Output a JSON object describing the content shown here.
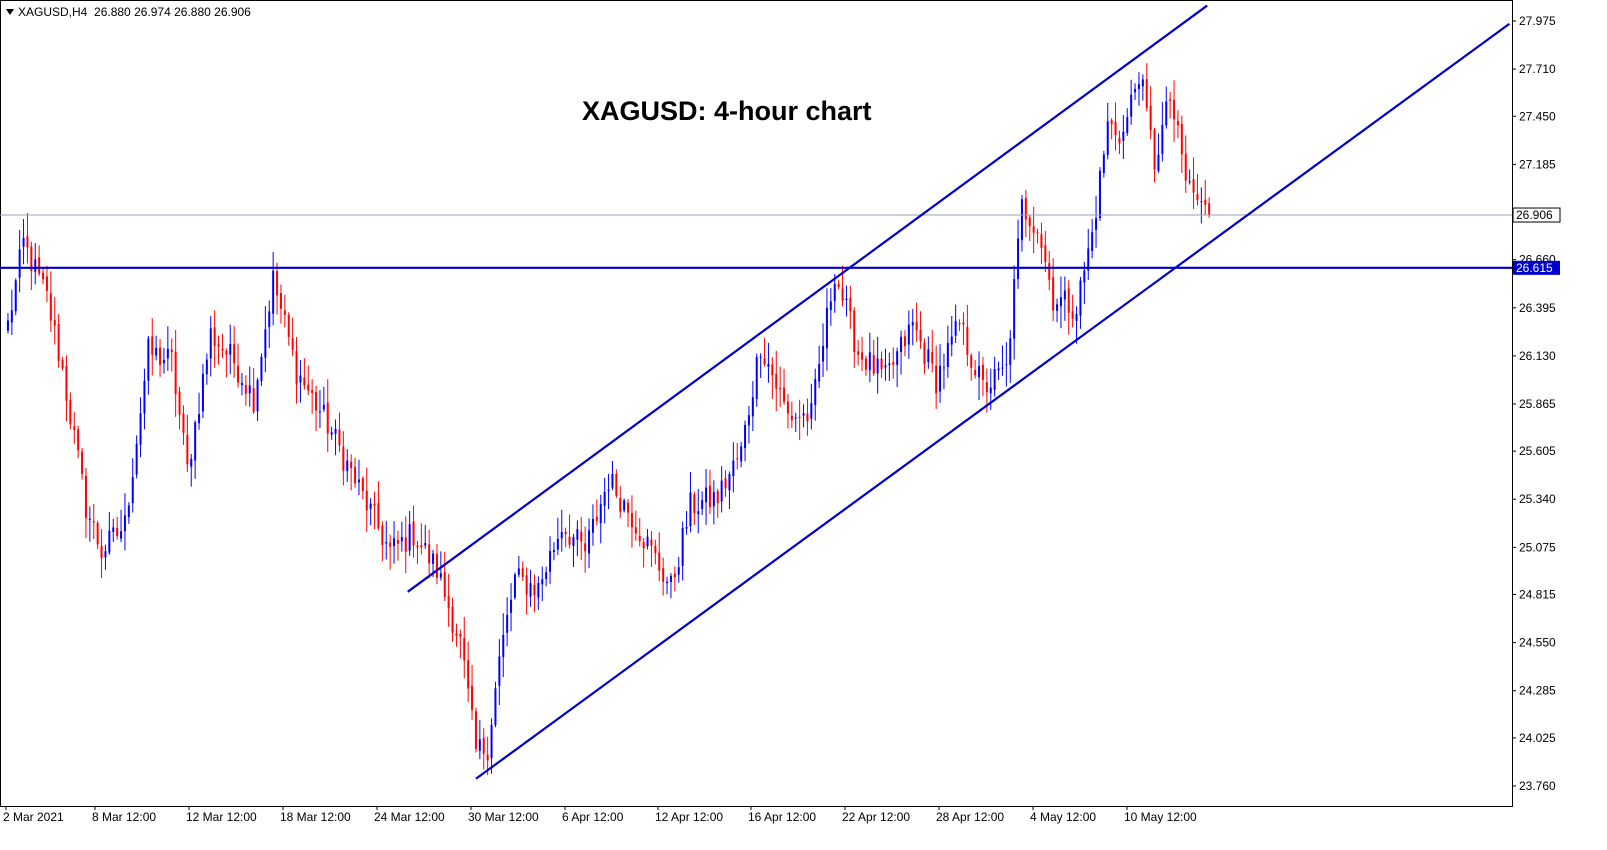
{
  "header": {
    "symbol": "XAGUSD,H4",
    "ohlc": "26.880 26.974 26.880 26.906"
  },
  "title": "XAGUSD: 4-hour chart",
  "chart_data": {
    "type": "candlestick",
    "symbol": "XAGUSD",
    "timeframe": "H4",
    "title": "XAGUSD: 4-hour chart",
    "ylim": [
      23.7,
      28.05
    ],
    "y_ticks": [
      "27.975",
      "27.710",
      "27.450",
      "27.185",
      "26.920",
      "26.660",
      "26.395",
      "26.130",
      "25.865",
      "25.605",
      "25.340",
      "25.075",
      "24.815",
      "24.550",
      "24.285",
      "24.025",
      "23.760"
    ],
    "x_ticks": [
      "2 Mar 2021",
      "8 Mar 12:00",
      "12 Mar 12:00",
      "18 Mar 12:00",
      "24 Mar 12:00",
      "30 Mar 12:00",
      "6 Apr 12:00",
      "12 Apr 12:00",
      "16 Apr 12:00",
      "22 Apr 12:00",
      "28 Apr 12:00",
      "4 May 12:00",
      "10 May 12:00"
    ],
    "current_price": 26.906,
    "current_price_label": "26.906",
    "support_level": 26.615,
    "support_label": "26.615",
    "colors": {
      "bull": "#0000ff",
      "bear": "#ff0000",
      "trendline": "#0000cc",
      "price_line": "#9aa3b0"
    },
    "anchors": [
      {
        "bar": 0,
        "price": 26.3
      },
      {
        "bar": 4,
        "price": 26.75
      },
      {
        "bar": 10,
        "price": 26.45
      },
      {
        "bar": 14,
        "price": 26.05
      },
      {
        "bar": 20,
        "price": 25.3
      },
      {
        "bar": 24,
        "price": 25.05
      },
      {
        "bar": 30,
        "price": 25.2
      },
      {
        "bar": 36,
        "price": 26.15
      },
      {
        "bar": 42,
        "price": 26.1
      },
      {
        "bar": 46,
        "price": 25.5
      },
      {
        "bar": 52,
        "price": 26.25
      },
      {
        "bar": 58,
        "price": 26.1
      },
      {
        "bar": 63,
        "price": 25.9
      },
      {
        "bar": 68,
        "price": 26.55
      },
      {
        "bar": 74,
        "price": 26.05
      },
      {
        "bar": 82,
        "price": 25.75
      },
      {
        "bar": 90,
        "price": 25.4
      },
      {
        "bar": 98,
        "price": 25.05
      },
      {
        "bar": 104,
        "price": 25.15
      },
      {
        "bar": 110,
        "price": 24.95
      },
      {
        "bar": 116,
        "price": 24.55
      },
      {
        "bar": 120,
        "price": 23.95
      },
      {
        "bar": 123,
        "price": 23.98
      },
      {
        "bar": 126,
        "price": 24.45
      },
      {
        "bar": 130,
        "price": 24.9
      },
      {
        "bar": 136,
        "price": 24.85
      },
      {
        "bar": 142,
        "price": 25.2
      },
      {
        "bar": 148,
        "price": 25.05
      },
      {
        "bar": 154,
        "price": 25.45
      },
      {
        "bar": 160,
        "price": 25.25
      },
      {
        "bar": 165,
        "price": 25.05
      },
      {
        "bar": 170,
        "price": 24.85
      },
      {
        "bar": 175,
        "price": 25.3
      },
      {
        "bar": 182,
        "price": 25.35
      },
      {
        "bar": 188,
        "price": 25.6
      },
      {
        "bar": 193,
        "price": 26.2
      },
      {
        "bar": 200,
        "price": 25.8
      },
      {
        "bar": 206,
        "price": 25.8
      },
      {
        "bar": 212,
        "price": 26.6
      },
      {
        "bar": 218,
        "price": 26.15
      },
      {
        "bar": 225,
        "price": 26.0
      },
      {
        "bar": 232,
        "price": 26.3
      },
      {
        "bar": 238,
        "price": 26.0
      },
      {
        "bar": 244,
        "price": 26.3
      },
      {
        "bar": 250,
        "price": 25.95
      },
      {
        "bar": 256,
        "price": 26.05
      },
      {
        "bar": 260,
        "price": 26.95
      },
      {
        "bar": 264,
        "price": 26.85
      },
      {
        "bar": 268,
        "price": 26.45
      },
      {
        "bar": 274,
        "price": 26.4
      },
      {
        "bar": 278,
        "price": 26.8
      },
      {
        "bar": 282,
        "price": 27.4
      },
      {
        "bar": 286,
        "price": 27.35
      },
      {
        "bar": 290,
        "price": 27.7
      },
      {
        "bar": 294,
        "price": 27.2
      },
      {
        "bar": 298,
        "price": 27.55
      },
      {
        "bar": 302,
        "price": 27.1
      },
      {
        "bar": 306,
        "price": 26.95
      },
      {
        "bar": 308,
        "price": 26.906
      }
    ]
  }
}
